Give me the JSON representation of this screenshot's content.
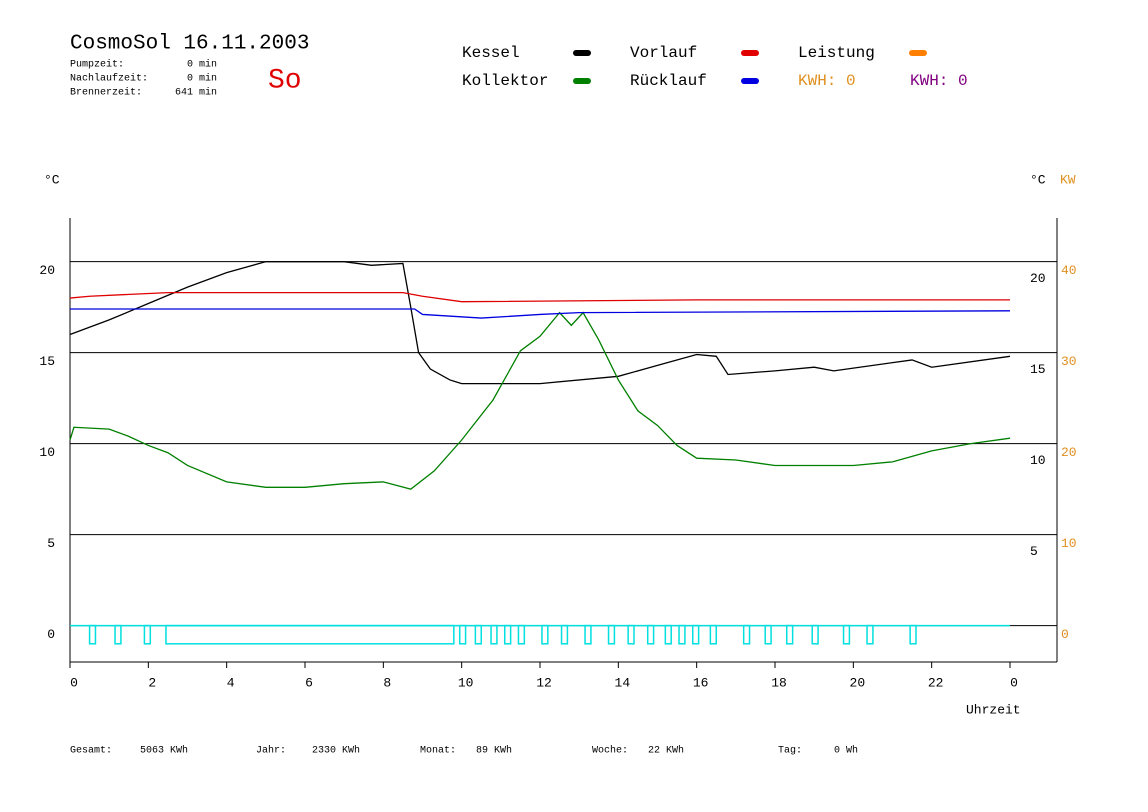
{
  "chart_data": {
    "type": "line",
    "title": "CosmoSol 16.11.2003",
    "stats": [
      [
        "Pumpzeit:",
        "0 min"
      ],
      [
        "Nachlaufzeit:",
        "0 min"
      ],
      [
        "Brennerzeit:",
        "641 min"
      ]
    ],
    "day": "So",
    "series": [
      {
        "name": "Kessel",
        "color": "#000000",
        "x": [
          0,
          1,
          2,
          3,
          4,
          5,
          6,
          7,
          7.7,
          8.5,
          8.7,
          8.9,
          9.2,
          9.7,
          10,
          12,
          14,
          15,
          16,
          16.5,
          16.8,
          18,
          19,
          19.5,
          21.5,
          22,
          24
        ],
        "values": [
          16.0,
          16.8,
          17.7,
          18.6,
          19.4,
          20,
          20,
          20,
          19.8,
          19.9,
          17.5,
          15.0,
          14.1,
          13.5,
          13.3,
          13.3,
          13.7,
          14.3,
          14.9,
          14.8,
          13.8,
          14.0,
          14.2,
          14.0,
          14.6,
          14.2,
          14.8
        ]
      },
      {
        "name": "Kollektor",
        "color": "#008000",
        "x": [
          0,
          0.1,
          1,
          1.5,
          2,
          2.5,
          3,
          4,
          5,
          6,
          7,
          8,
          8.7,
          9.3,
          10,
          10.8,
          11.5,
          12,
          12.5,
          12.8,
          13.1,
          13.5,
          14,
          14.5,
          15,
          15.5,
          16,
          17,
          18,
          19,
          20,
          21,
          21.5,
          22,
          23,
          24
        ],
        "values": [
          10.2,
          10.9,
          10.8,
          10.4,
          9.9,
          9.5,
          8.8,
          7.9,
          7.6,
          7.6,
          7.8,
          7.9,
          7.5,
          8.5,
          10.2,
          12.4,
          15.1,
          15.9,
          17.2,
          16.5,
          17.2,
          15.7,
          13.5,
          11.8,
          11.0,
          9.9,
          9.2,
          9.1,
          8.8,
          8.8,
          8.8,
          9.0,
          9.3,
          9.6,
          10.0,
          10.3
        ]
      },
      {
        "name": "Vorlauf",
        "color": "#e00000",
        "x": [
          0,
          0.5,
          2.5,
          8.5,
          9,
          10,
          16,
          24
        ],
        "values": [
          18.0,
          18.1,
          18.3,
          18.3,
          18.1,
          17.8,
          17.9,
          17.9
        ]
      },
      {
        "name": "Rücklauf",
        "color": "#0000e0",
        "x": [
          0,
          8.8,
          9,
          10.5,
          12,
          13,
          24
        ],
        "values": [
          17.4,
          17.4,
          17.1,
          16.9,
          17.1,
          17.2,
          17.3
        ]
      },
      {
        "name": "Leistung",
        "color": "#ff8000",
        "x": [],
        "values": []
      }
    ],
    "pump_color": "#00e0e0",
    "pump_level": -1,
    "pump_intervals": [
      [
        0.5,
        0.65
      ],
      [
        1.15,
        1.3
      ],
      [
        1.9,
        2.05
      ],
      [
        2.45,
        9.8
      ],
      [
        9.95,
        10.1
      ],
      [
        10.35,
        10.5
      ],
      [
        10.75,
        10.9
      ],
      [
        11.1,
        11.25
      ],
      [
        11.45,
        11.6
      ],
      [
        12.05,
        12.2
      ],
      [
        12.55,
        12.7
      ],
      [
        13.15,
        13.3
      ],
      [
        13.75,
        13.9
      ],
      [
        14.25,
        14.4
      ],
      [
        14.75,
        14.9
      ],
      [
        15.2,
        15.35
      ],
      [
        15.55,
        15.7
      ],
      [
        15.9,
        16.05
      ],
      [
        16.35,
        16.5
      ],
      [
        17.2,
        17.35
      ],
      [
        17.75,
        17.9
      ],
      [
        18.3,
        18.45
      ],
      [
        18.95,
        19.1
      ],
      [
        19.75,
        19.9
      ],
      [
        20.35,
        20.5
      ],
      [
        21.45,
        21.6
      ]
    ],
    "kwh": [
      {
        "text": "KWH: 0",
        "color": "#e09020"
      },
      {
        "text": "KWH: 0",
        "color": "#800080"
      }
    ],
    "y_unit": "°C",
    "y2_units": [
      "°C",
      "KW"
    ],
    "y2_color": "#e09020",
    "x_label": "Uhrzeit",
    "xlim": [
      0,
      25.2
    ],
    "xticks": [
      0,
      2,
      4,
      6,
      8,
      10,
      12,
      14,
      16,
      18,
      20,
      22,
      {
        "value": 24,
        "label": "0"
      }
    ],
    "ylim": [
      -2,
      22.4
    ],
    "yticks": [
      0,
      5,
      10,
      15,
      20
    ],
    "y2lim": [
      -4,
      44.8
    ],
    "y2ticks": [
      0,
      10,
      20,
      30,
      40
    ],
    "grid": true,
    "totals": [
      [
        "Gesamt:",
        "5063 KWh"
      ],
      [
        "Jahr:",
        "2330 KWh"
      ],
      [
        "Monat:",
        "89 KWh"
      ],
      [
        "Woche:",
        "22 KWh"
      ],
      [
        "Tag:",
        "0 Wh"
      ]
    ]
  }
}
